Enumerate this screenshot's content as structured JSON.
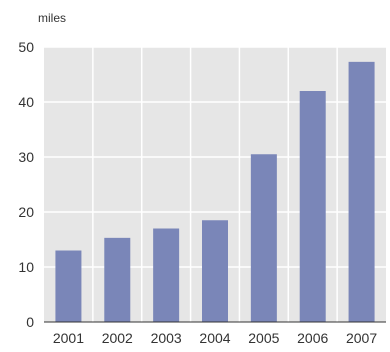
{
  "chart_data": {
    "type": "bar",
    "ylabel": "miles",
    "categories": [
      "2001",
      "2002",
      "2003",
      "2004",
      "2005",
      "2006",
      "2007"
    ],
    "values": [
      13,
      15.3,
      17,
      18.5,
      30.5,
      42,
      47.3
    ],
    "ylim": [
      0,
      50
    ],
    "yticks": [
      "0",
      "10",
      "20",
      "30",
      "40",
      "50"
    ],
    "grid": true,
    "colors": {
      "plot_background": "#e6e6e6",
      "grid": "#ffffff",
      "bar": "#7a86b8",
      "axis": "#333333"
    }
  }
}
